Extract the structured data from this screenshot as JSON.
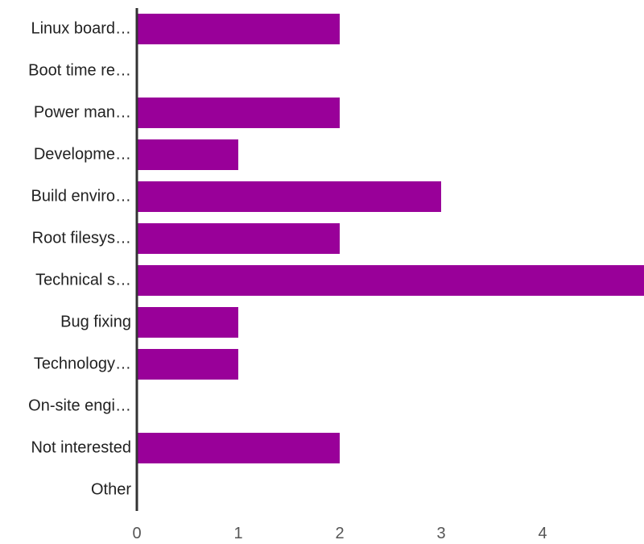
{
  "chart_data": {
    "type": "bar",
    "orientation": "horizontal",
    "categories": [
      "Linux board…",
      "Boot time re…",
      "Power man…",
      "Developme…",
      "Build enviro…",
      "Root filesys…",
      "Technical s…",
      "Bug fixing",
      "Technology…",
      "On-site engi…",
      "Not interested",
      "Other"
    ],
    "values": [
      2,
      0,
      2,
      1,
      3,
      2,
      5,
      1,
      1,
      0,
      2,
      0
    ],
    "xlim": [
      0,
      5
    ],
    "xticks": [
      "0",
      "1",
      "2",
      "3",
      "4"
    ],
    "bar_color": "#990099",
    "axis_color": "#333333",
    "grid": false,
    "legend": "none"
  }
}
